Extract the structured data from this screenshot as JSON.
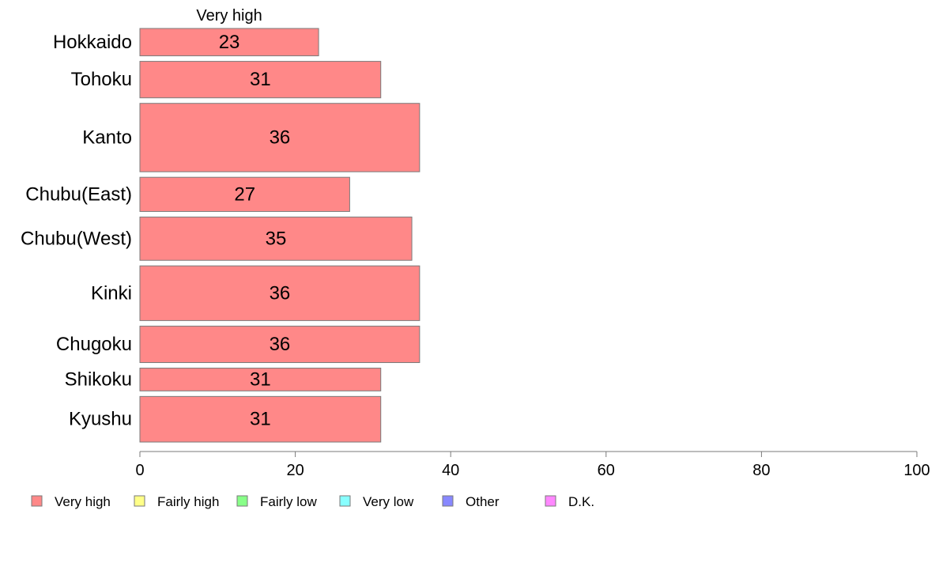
{
  "chart_data": {
    "type": "bar",
    "orientation": "horizontal",
    "categories": [
      "Hokkaido",
      "Tohoku",
      "Kanto",
      "Chubu(East)",
      "Chubu(West)",
      "Kinki",
      "Chugoku",
      "Shikoku",
      "Kyushu"
    ],
    "series": [
      {
        "name": "Very high",
        "values": [
          23,
          31,
          36,
          27,
          35,
          36,
          36,
          31,
          31
        ],
        "color": "#ff8888"
      }
    ],
    "bar_weights": [
      0.6,
      0.8,
      1.5,
      0.75,
      0.95,
      1.2,
      0.8,
      0.5,
      1.0
    ],
    "xlim": [
      0,
      100
    ],
    "xticks": [
      0,
      20,
      40,
      60,
      80,
      100
    ],
    "title": "",
    "xlabel": "",
    "ylabel": "",
    "grid": false,
    "legend": {
      "placement": "bottom-left",
      "items": [
        {
          "label": "Very high",
          "color": "#ff8888"
        },
        {
          "label": "Fairly high",
          "color": "#ffff88"
        },
        {
          "label": "Fairly low",
          "color": "#88ff88"
        },
        {
          "label": "Very low",
          "color": "#88ffff"
        },
        {
          "label": "Other",
          "color": "#8888ff"
        },
        {
          "label": "D.K.",
          "color": "#ff88ff"
        }
      ]
    }
  }
}
